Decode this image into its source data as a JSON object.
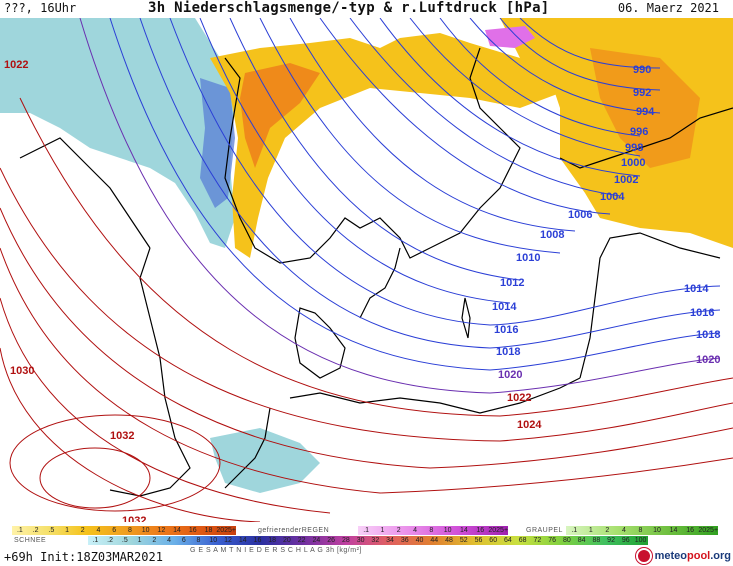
{
  "header": {
    "run_label": "???, 16Uhr",
    "title": "3h Niederschlagsmenge/-typ & r.Luftdruck [hPa]",
    "date": "06. Maerz 2021"
  },
  "map": {
    "isobars_blue": [
      "990",
      "992",
      "994",
      "996",
      "998",
      "1000",
      "1002",
      "1004",
      "1006",
      "1008",
      "1010",
      "1012",
      "1014",
      "1016",
      "1018",
      "1014",
      "1016",
      "1018"
    ],
    "isobars_purple": [
      "1020",
      "1020"
    ],
    "isobars_red": [
      "1022",
      "1024",
      "1022",
      "1030",
      "1032",
      "1032"
    ],
    "colors": {
      "rain_yellow": "#f5c21b",
      "rain_orange": "#ef8a1a",
      "snow_cyan": "#9fd6dc",
      "snow_blue": "#5a7fd6",
      "freezing_pink": "#e070e8",
      "isobar_low": "#2b3fd6",
      "isobar_mid": "#6a2fb0",
      "isobar_high": "#b01010"
    }
  },
  "legend": {
    "rain_values": [
      ".1",
      ".2",
      ".5",
      "1",
      "2",
      "4",
      "6",
      "8",
      "10",
      "12",
      "14",
      "16",
      "18",
      "2025+"
    ],
    "snow_label": "SCHNEE",
    "snow_values": [
      ".1",
      ".2",
      ".5",
      "1",
      "2",
      "4",
      "6",
      "8",
      "10",
      "12",
      "14",
      "16",
      "18",
      "20",
      "22",
      "24",
      "26",
      "28",
      "30",
      "32",
      "34",
      "36",
      "40",
      "44",
      "48",
      "52",
      "56",
      "60",
      "64",
      "68",
      "72",
      "76",
      "80",
      "84",
      "88",
      "92",
      "96",
      "100"
    ],
    "freezing_label": "gefrierenderREGEN",
    "freezing_values": [
      ".1",
      "1",
      "2",
      "4",
      "8",
      "10",
      "14",
      "16",
      "2025+"
    ],
    "graupel_label": "GRAUPEL",
    "graupel_values": [
      ".1",
      "1",
      "2",
      "4",
      "8",
      "10",
      "14",
      "16",
      "2025+"
    ],
    "total_label": "G E S A M T N I E D E R S C H L A G  3h  [kg/m²]",
    "run_info": "+69h  Init:18Z03MAR2021",
    "logo_meteo": "meteo",
    "logo_pool": "pool",
    "logo_suffix": ".org"
  }
}
